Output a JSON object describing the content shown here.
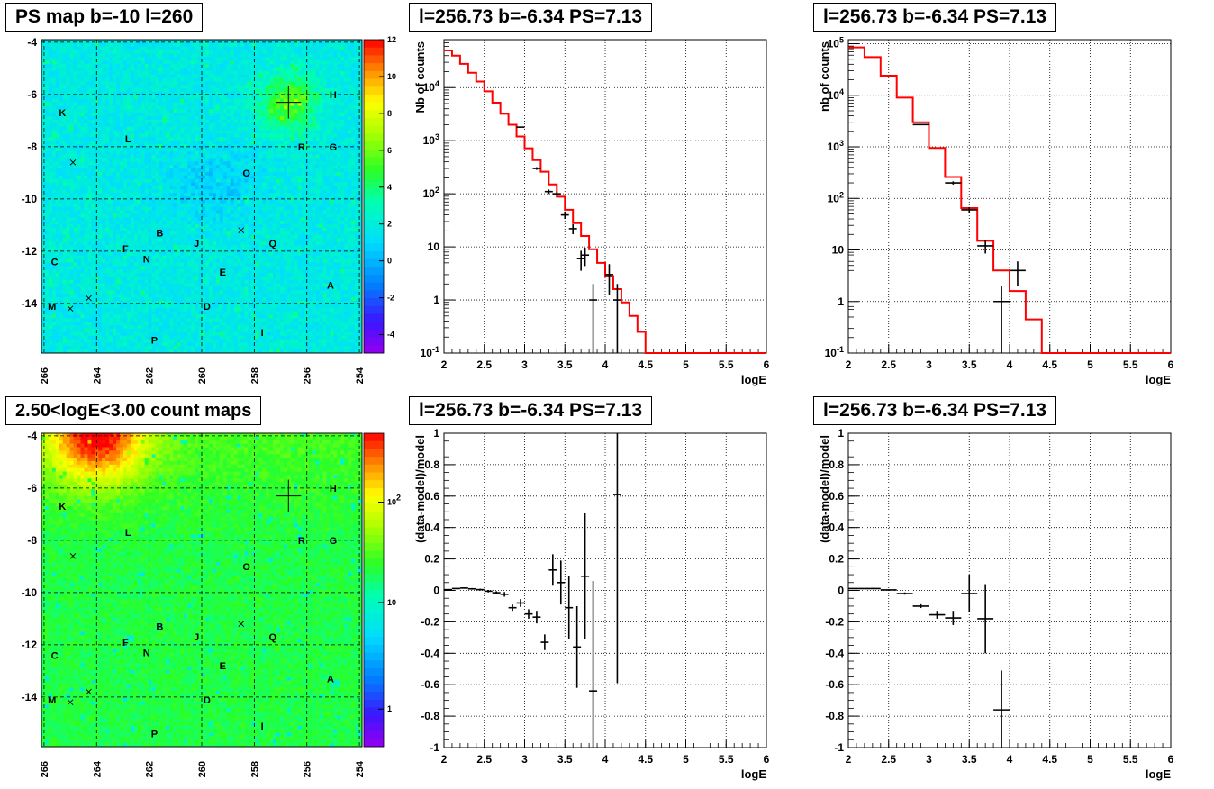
{
  "panels": {
    "map_top_title": "PS map b=-10 l=260",
    "map_bottom_title": "2.50<logE<3.00 count maps",
    "spectrum_left_title": "l=256.73 b=-6.34 PS=7.13",
    "spectrum_right_title": "l=256.73 b=-6.34 PS=7.13",
    "resid_left_title": "l=256.73 b=-6.34 PS=7.13",
    "resid_right_title": "l=256.73 b=-6.34 PS=7.13"
  },
  "colors": {
    "model_line": "#ff0000",
    "data": "#000000",
    "grid": "#000000"
  },
  "chart_data": [
    {
      "id": "map_top",
      "type": "heatmap",
      "title": "PS map b=-10 l=260",
      "x_ticks": [
        "266",
        "264",
        "262",
        "260",
        "258",
        "256",
        "254"
      ],
      "x_range": [
        266.1,
        253.9
      ],
      "y_ticks": [
        "-4",
        "-6",
        "-8",
        "-10",
        "-12",
        "-14"
      ],
      "y_range": [
        -15.9,
        -3.9
      ],
      "colorbar_ticks": [
        "12",
        "10",
        "8",
        "6",
        "4",
        "2",
        "0",
        "-2",
        "-4"
      ],
      "colorbar_range": [
        -5,
        12
      ],
      "hotspot": {
        "l": 256.7,
        "b": -6.3
      },
      "sources": [
        {
          "label": "K",
          "l": 265.3,
          "b": -6.7
        },
        {
          "label": "H",
          "l": 255.0,
          "b": -6.0
        },
        {
          "label": "L",
          "l": 262.8,
          "b": -7.7
        },
        {
          "label": "R",
          "l": 256.2,
          "b": -8.0
        },
        {
          "label": "G",
          "l": 255.0,
          "b": -8.0
        },
        {
          "label": "O",
          "l": 258.3,
          "b": -9.0
        },
        {
          "label": "B",
          "l": 261.6,
          "b": -11.3
        },
        {
          "label": "J",
          "l": 260.2,
          "b": -11.7
        },
        {
          "label": "Q",
          "l": 257.3,
          "b": -11.7
        },
        {
          "label": "F",
          "l": 262.9,
          "b": -11.9
        },
        {
          "label": "N",
          "l": 262.1,
          "b": -12.3
        },
        {
          "label": "C",
          "l": 265.6,
          "b": -12.4
        },
        {
          "label": "E",
          "l": 259.2,
          "b": -12.8
        },
        {
          "label": "A",
          "l": 255.1,
          "b": -13.3
        },
        {
          "label": "M",
          "l": 265.7,
          "b": -14.1
        },
        {
          "label": "D",
          "l": 259.8,
          "b": -14.1
        },
        {
          "label": "I",
          "l": 257.7,
          "b": -15.1
        },
        {
          "label": "P",
          "l": 261.8,
          "b": -15.4
        }
      ],
      "crosses": [
        {
          "l": 264.9,
          "b": -8.6
        },
        {
          "l": 258.5,
          "b": -11.2
        },
        {
          "l": 264.3,
          "b": -13.8
        },
        {
          "l": 265.0,
          "b": -14.2
        }
      ]
    },
    {
      "id": "map_bottom",
      "type": "heatmap",
      "title": "2.50<logE<3.00 count maps",
      "x_ticks": [
        "266",
        "264",
        "262",
        "260",
        "258",
        "256",
        "254"
      ],
      "x_range": [
        266.1,
        253.9
      ],
      "y_ticks": [
        "-4",
        "-6",
        "-8",
        "-10",
        "-12",
        "-14"
      ],
      "y_range": [
        -15.9,
        -3.9
      ],
      "colorbar_ticks": [
        "10^2",
        "10",
        "1"
      ],
      "colorbar_log": true,
      "hotspot": {
        "l": 264.0,
        "b": -3.9
      }
    },
    {
      "id": "spec_left",
      "type": "line",
      "title": "l=256.73 b=-6.34 PS=7.13",
      "xlabel": "logE",
      "ylabel": "Nb of counts",
      "xlim": [
        2,
        6
      ],
      "ylim": [
        0.1,
        80000
      ],
      "log_y": true,
      "x_ticks": [
        "2",
        "2.5",
        "3",
        "3.5",
        "4",
        "4.5",
        "5",
        "5.5",
        "6"
      ],
      "y_ticks": [
        "10^-1",
        "1",
        "10",
        "10^2",
        "10^3",
        "10^4"
      ],
      "series": [
        {
          "kind": "model_step",
          "bin_width": 0.1,
          "edges": [
            2.0,
            2.1,
            2.2,
            2.3,
            2.4,
            2.5,
            2.6,
            2.7,
            2.8,
            2.9,
            3.0,
            3.1,
            3.2,
            3.3,
            3.4,
            3.5,
            3.6,
            3.7,
            3.8,
            3.9,
            4.0,
            4.1,
            4.2,
            4.3,
            4.4,
            4.5,
            6.0
          ],
          "values": [
            50000,
            40000,
            28000,
            19000,
            13000,
            8500,
            5200,
            3200,
            2000,
            1200,
            720,
            430,
            260,
            150,
            88,
            50,
            28,
            16,
            9,
            5,
            2.8,
            1.6,
            0.9,
            0.5,
            0.25,
            0.1
          ]
        },
        {
          "kind": "data",
          "x": [
            2.95,
            3.15,
            3.3,
            3.4,
            3.5,
            3.6,
            3.7,
            3.75,
            3.85,
            4.05,
            4.15
          ],
          "y": [
            1800,
            300,
            110,
            100,
            40,
            22,
            6,
            7,
            1,
            3,
            1
          ],
          "xerr": 0.05
        }
      ]
    },
    {
      "id": "spec_right",
      "type": "line",
      "title": "l=256.73 b=-6.34 PS=7.13",
      "xlabel": "logE",
      "ylabel": "nb of counts",
      "xlim": [
        2,
        6
      ],
      "ylim": [
        0.1,
        120000
      ],
      "log_y": true,
      "x_ticks": [
        "2",
        "2.5",
        "3",
        "3.5",
        "4",
        "4.5",
        "5",
        "5.5",
        "6"
      ],
      "y_ticks": [
        "10^-1",
        "1",
        "10",
        "10^2",
        "10^3",
        "10^4",
        "10^5"
      ],
      "series": [
        {
          "kind": "model_step",
          "bin_width": 0.2,
          "edges": [
            2.0,
            2.2,
            2.4,
            2.6,
            2.8,
            3.0,
            3.2,
            3.4,
            3.6,
            3.8,
            4.0,
            4.2,
            4.4,
            4.6,
            6.0
          ],
          "values": [
            85000,
            55000,
            24000,
            9000,
            3000,
            950,
            260,
            65,
            15,
            4,
            1.6,
            0.45,
            0.1,
            0.1
          ]
        },
        {
          "kind": "data",
          "x": [
            2.9,
            3.3,
            3.5,
            3.7,
            3.9,
            4.1
          ],
          "y": [
            2700,
            200,
            60,
            12,
            1,
            4
          ],
          "xerr": 0.1
        }
      ]
    },
    {
      "id": "resid_left",
      "type": "scatter",
      "title": "l=256.73 b=-6.34 PS=7.13",
      "xlabel": "logE",
      "ylabel": "(data-model)/model",
      "xlim": [
        2,
        6
      ],
      "ylim": [
        -1,
        1
      ],
      "x_ticks": [
        "2",
        "2.5",
        "3",
        "3.5",
        "4",
        "4.5",
        "5",
        "5.5",
        "6"
      ],
      "y_ticks": [
        "-1",
        "-0.8",
        "-0.6",
        "-0.4",
        "-0.2",
        "0",
        "0.2",
        "0.4",
        "0.6",
        "0.8",
        "1"
      ],
      "series": [
        {
          "kind": "data",
          "xerr": 0.05,
          "x": [
            2.05,
            2.15,
            2.25,
            2.35,
            2.45,
            2.55,
            2.65,
            2.75,
            2.85,
            2.95,
            3.05,
            3.15,
            3.25,
            3.35,
            3.45,
            3.55,
            3.65,
            3.75,
            3.85,
            4.15
          ],
          "y": [
            0.005,
            0.012,
            0.015,
            0.01,
            0.005,
            -0.005,
            -0.015,
            -0.025,
            -0.11,
            -0.08,
            -0.15,
            -0.17,
            -0.33,
            0.13,
            0.05,
            -0.11,
            -0.36,
            0.09,
            -0.64,
            0.61
          ],
          "yerr": [
            0.003,
            0.003,
            0.004,
            0.005,
            0.006,
            0.008,
            0.01,
            0.015,
            0.02,
            0.025,
            0.03,
            0.04,
            0.05,
            0.1,
            0.14,
            0.2,
            0.26,
            0.4,
            0.7,
            1.2
          ]
        }
      ]
    },
    {
      "id": "resid_right",
      "type": "scatter",
      "title": "l=256.73 b=-6.34 PS=7.13",
      "xlabel": "logE",
      "ylabel": "(data-model)/model",
      "xlim": [
        2,
        6
      ],
      "ylim": [
        -1,
        1
      ],
      "x_ticks": [
        "2",
        "2.5",
        "3",
        "3.5",
        "4",
        "4.5",
        "5",
        "5.5",
        "6"
      ],
      "y_ticks": [
        "-1",
        "-0.8",
        "-0.6",
        "-0.4",
        "-0.2",
        "0",
        "0.2",
        "0.4",
        "0.6",
        "0.8",
        "1"
      ],
      "series": [
        {
          "kind": "data",
          "xerr": 0.1,
          "x": [
            2.1,
            2.3,
            2.5,
            2.7,
            2.9,
            3.1,
            3.3,
            3.5,
            3.7,
            3.9
          ],
          "y": [
            0.012,
            0.012,
            0.003,
            -0.02,
            -0.1,
            -0.155,
            -0.175,
            -0.02,
            -0.18,
            -0.76
          ],
          "yerr": [
            0.002,
            0.003,
            0.004,
            0.007,
            0.012,
            0.025,
            0.045,
            0.12,
            0.22,
            0.25
          ]
        }
      ]
    }
  ]
}
